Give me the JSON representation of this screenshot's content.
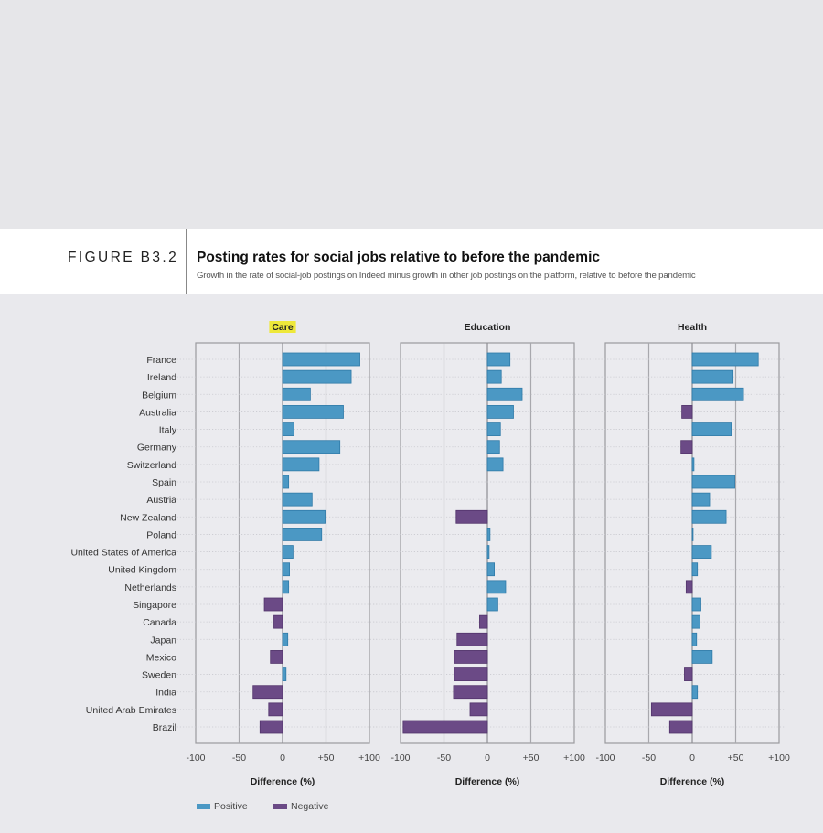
{
  "figure": {
    "label": "FIGURE B3.2",
    "title": "Posting rates for social jobs relative to before the pandemic",
    "subtitle": "Growth in the rate of social-job postings on Indeed minus growth in other job postings on the platform, relative to before the pandemic"
  },
  "colors": {
    "positive": "#4b98c4",
    "positive_border": "#2f7aa8",
    "negative": "#6b4a86",
    "negative_border": "#52346b",
    "highlight": "#eee83a"
  },
  "chart_data": {
    "type": "bar",
    "orientation": "horizontal",
    "title": "Posting rates for social jobs relative to before the pandemic",
    "categories": [
      "France",
      "Ireland",
      "Belgium",
      "Australia",
      "Italy",
      "Germany",
      "Switzerland",
      "Spain",
      "Austria",
      "New Zealand",
      "Poland",
      "United States of America",
      "United Kingdom",
      "Netherlands",
      "Singapore",
      "Canada",
      "Japan",
      "Mexico",
      "Sweden",
      "India",
      "United Arab Emirates",
      "Brazil"
    ],
    "xlabel": "Difference (%)",
    "xlim": [
      -100,
      100
    ],
    "xticks": [
      "-100",
      "-50",
      "0",
      "+50",
      "+100"
    ],
    "xtick_values": [
      -100,
      -50,
      0,
      50,
      100
    ],
    "grid": true,
    "legend": {
      "position": "bottom-left",
      "entries": [
        "Positive",
        "Negative"
      ]
    },
    "panels": [
      {
        "name": "Care",
        "highlighted": true,
        "values": [
          89,
          79,
          32,
          70,
          13,
          66,
          42,
          7,
          34,
          49,
          45,
          12,
          8,
          7,
          -21,
          -10,
          6,
          -14,
          4,
          -34,
          -16,
          -26
        ]
      },
      {
        "name": "Education",
        "highlighted": false,
        "values": [
          26,
          16,
          40,
          30,
          15,
          14,
          18,
          0,
          0,
          -36,
          3,
          2,
          8,
          21,
          12,
          -9,
          -35,
          -38,
          -38,
          -39,
          -20,
          -97
        ]
      },
      {
        "name": "Health",
        "highlighted": false,
        "values": [
          76,
          47,
          59,
          -12,
          45,
          -13,
          2,
          49,
          20,
          39,
          1,
          22,
          6,
          -7,
          10,
          9,
          5,
          23,
          -9,
          6,
          -47,
          -26
        ]
      }
    ]
  }
}
